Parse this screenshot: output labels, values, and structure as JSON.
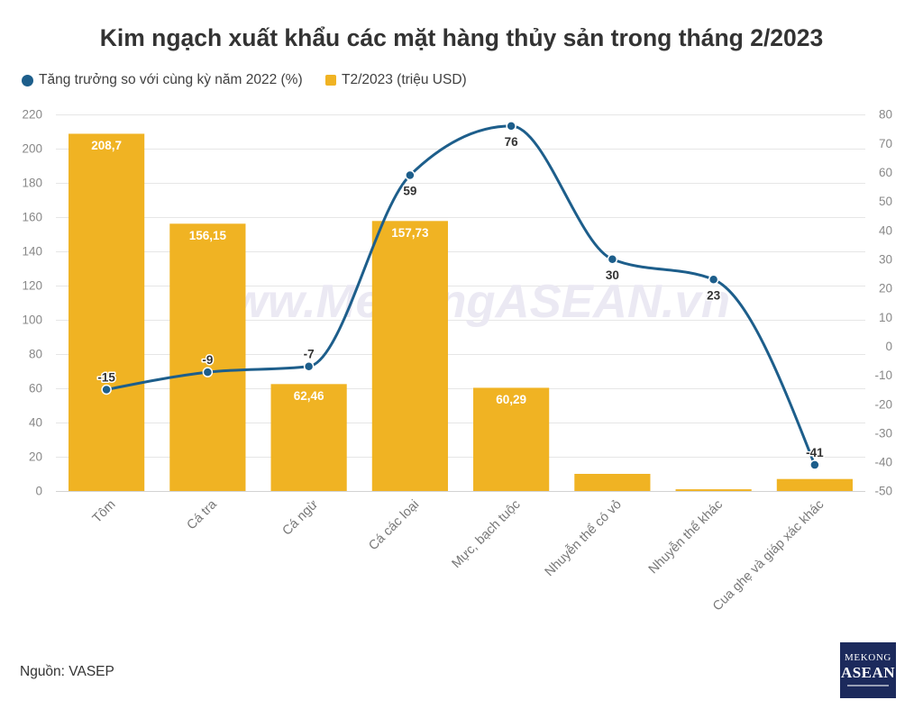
{
  "source": "Nguồn: VASEP",
  "watermark": "www.MekongASEAN.vn",
  "logo": {
    "line1": "MEKONG",
    "line2": "ASEAN",
    "background": "#1c2a5c"
  },
  "chart_data": {
    "type": "bar",
    "title": "Kim ngạch xuất khẩu các mặt hàng thủy sản trong tháng 2/2023",
    "categories": [
      "Tôm",
      "Cá tra",
      "Cá ngừ",
      "Cá các loại",
      "Mực, bạch tuộc",
      "Nhuyễn thể có vỏ",
      "Nhuyễn thể khác",
      "Cua ghẹ và giáp xác khác"
    ],
    "series": [
      {
        "name": "Tăng trưởng so với cùng kỳ năm 2022 (%)",
        "type": "line",
        "axis": "right",
        "color": "#1d5e8b",
        "legend_marker": "circle",
        "curve": "smooth",
        "values": [
          -15,
          -9,
          -7,
          59,
          76,
          30,
          23,
          -41
        ]
      },
      {
        "name": "T2/2023 (triệu USD)",
        "type": "bar",
        "axis": "left",
        "color": "#f0b323",
        "legend_marker": "square",
        "values": [
          208.7,
          156.15,
          62.46,
          157.73,
          60.29,
          10,
          1,
          7
        ],
        "data_labels": [
          "208,7",
          "156,15",
          "62,46",
          "157,73",
          "60,29",
          null,
          null,
          null
        ]
      }
    ],
    "y_left": {
      "range": [
        0,
        220
      ],
      "ticks": [
        0,
        20,
        40,
        60,
        80,
        100,
        120,
        140,
        160,
        180,
        200,
        220
      ]
    },
    "y_right": {
      "range": [
        -50,
        80
      ],
      "ticks": [
        -50,
        -40,
        -30,
        -20,
        -10,
        0,
        10,
        20,
        30,
        40,
        50,
        60,
        70,
        80
      ]
    },
    "grid": true,
    "legend_position": "top-left"
  }
}
